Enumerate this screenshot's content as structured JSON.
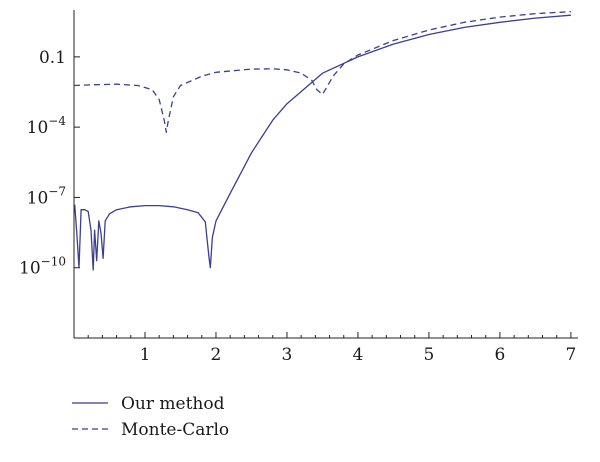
{
  "chart_data": {
    "type": "line",
    "title": "",
    "xlabel": "",
    "ylabel": "",
    "xlim": [
      0,
      7.1
    ],
    "ylim": [
      1e-13,
      10
    ],
    "yscale": "log",
    "grid": false,
    "legend_position": "bottom-left",
    "x_ticks": [
      {
        "value": 1,
        "label": "1"
      },
      {
        "value": 2,
        "label": "2"
      },
      {
        "value": 3,
        "label": "3"
      },
      {
        "value": 4,
        "label": "4"
      },
      {
        "value": 5,
        "label": "5"
      },
      {
        "value": 6,
        "label": "6"
      },
      {
        "value": 7,
        "label": "7"
      }
    ],
    "y_ticks": [
      {
        "value": 0.1,
        "label": "0.1",
        "sup": ""
      },
      {
        "value": 0.0001,
        "label": "10",
        "sup": "−4"
      },
      {
        "value": 1e-07,
        "label": "10",
        "sup": "−7"
      },
      {
        "value": 1e-10,
        "label": "10",
        "sup": "−10"
      },
      {
        "value": 1e-13,
        "label": "",
        "sup": ""
      }
    ],
    "series": [
      {
        "name": "Our method",
        "style": "solid",
        "color": "#3b3f8f",
        "points": [
          [
            0.01,
            5e-08
          ],
          [
            0.04,
            3e-09
          ],
          [
            0.07,
            1e-10
          ],
          [
            0.1,
            3e-08
          ],
          [
            0.15,
            3e-08
          ],
          [
            0.2,
            2.5e-08
          ],
          [
            0.24,
            4e-09
          ],
          [
            0.27,
            8e-11
          ],
          [
            0.29,
            4e-09
          ],
          [
            0.32,
            2e-10
          ],
          [
            0.35,
            1e-08
          ],
          [
            0.38,
            3e-09
          ],
          [
            0.41,
            2.5e-10
          ],
          [
            0.44,
            1e-08
          ],
          [
            0.5,
            2e-08
          ],
          [
            0.6,
            3e-08
          ],
          [
            0.8,
            4e-08
          ],
          [
            1.0,
            4.5e-08
          ],
          [
            1.2,
            4.5e-08
          ],
          [
            1.4,
            4e-08
          ],
          [
            1.6,
            3e-08
          ],
          [
            1.75,
            2.2e-08
          ],
          [
            1.85,
            9e-09
          ],
          [
            1.9,
            3e-10
          ],
          [
            1.92,
            1e-10
          ],
          [
            1.95,
            2e-09
          ],
          [
            2.0,
            1e-08
          ],
          [
            2.2,
            1.5e-07
          ],
          [
            2.5,
            8e-06
          ],
          [
            2.8,
            0.0002
          ],
          [
            3.0,
            0.001
          ],
          [
            3.5,
            0.02
          ],
          [
            4.0,
            0.1
          ],
          [
            4.5,
            0.35
          ],
          [
            5.0,
            0.9
          ],
          [
            5.5,
            1.8
          ],
          [
            6.0,
            3
          ],
          [
            6.5,
            4.5
          ],
          [
            7.0,
            6
          ]
        ]
      },
      {
        "name": "Monte-Carlo",
        "style": "dashed",
        "color": "#3b3f8f",
        "points": [
          [
            0.0,
            0.006
          ],
          [
            0.3,
            0.0065
          ],
          [
            0.6,
            0.0068
          ],
          [
            0.9,
            0.006
          ],
          [
            1.1,
            0.004
          ],
          [
            1.2,
            0.0015
          ],
          [
            1.27,
            0.0002
          ],
          [
            1.3,
            6e-05
          ],
          [
            1.33,
            0.0002
          ],
          [
            1.4,
            0.002
          ],
          [
            1.5,
            0.006
          ],
          [
            1.8,
            0.015
          ],
          [
            2.0,
            0.022
          ],
          [
            2.5,
            0.03
          ],
          [
            2.8,
            0.031
          ],
          [
            3.0,
            0.028
          ],
          [
            3.2,
            0.02
          ],
          [
            3.35,
            0.01
          ],
          [
            3.42,
            0.004
          ],
          [
            3.5,
            0.0025
          ],
          [
            3.56,
            0.005
          ],
          [
            3.65,
            0.015
          ],
          [
            3.8,
            0.05
          ],
          [
            4.0,
            0.12
          ],
          [
            4.5,
            0.5
          ],
          [
            5.0,
            1.4
          ],
          [
            5.5,
            3
          ],
          [
            6.0,
            5
          ],
          [
            6.5,
            7
          ],
          [
            7.0,
            8.5
          ]
        ]
      }
    ]
  }
}
